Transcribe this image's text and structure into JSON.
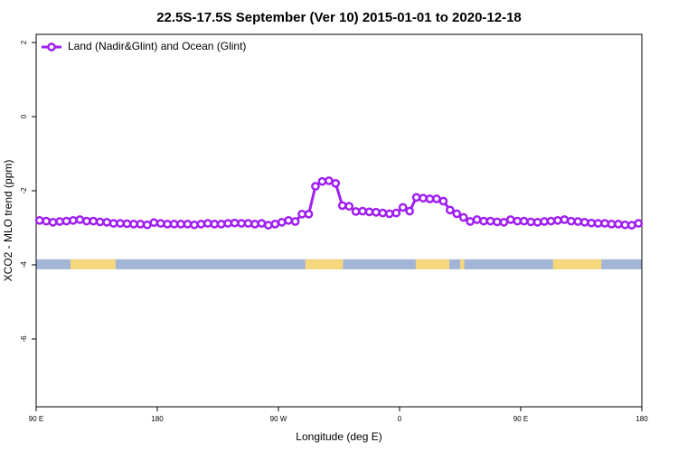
{
  "chart_data": {
    "type": "line",
    "title": "22.5S-17.5S September (Ver 10)   2015-01-01 to 2020-12-18",
    "xlabel": "Longitude (deg E)",
    "ylabel": "XCO2 - MLO trend (ppm)",
    "xlim": [
      90,
      540
    ],
    "ylim": [
      -7.83,
      2.22
    ],
    "xticks": [
      {
        "value": 90,
        "label": "90 E"
      },
      180,
      {
        "value": 270,
        "label": "90 W"
      },
      {
        "value": 360,
        "label": "0"
      },
      {
        "value": 450,
        "label": "90 E"
      },
      {
        "value": 540,
        "label": "180"
      }
    ],
    "yticks": [
      -6,
      -4,
      -2,
      0,
      2
    ],
    "legend": "upper left",
    "x": [
      92.5,
      97.5,
      102.5,
      107.5,
      112.5,
      117.5,
      122.5,
      127.5,
      132.5,
      137.5,
      142.5,
      147.5,
      152.5,
      157.5,
      162.5,
      167.5,
      172.5,
      177.5,
      182.5,
      187.5,
      192.5,
      197.5,
      202.5,
      207.5,
      212.5,
      217.5,
      222.5,
      227.5,
      232.5,
      237.5,
      242.5,
      247.5,
      252.5,
      257.5,
      262.5,
      267.5,
      272.5,
      277.5,
      282.5,
      287.5,
      292.5,
      297.5,
      302.5,
      307.5,
      312.5,
      317.5,
      322.5,
      327.5,
      332.5,
      337.5,
      342.5,
      347.5,
      352.5,
      357.5,
      362.5,
      367.5,
      372.5,
      377.5,
      382.5,
      387.5,
      392.5,
      397.5,
      402.5,
      407.5,
      412.5,
      417.5,
      422.5,
      427.5,
      432.5,
      437.5,
      442.5,
      447.5,
      452.5,
      457.5,
      462.5,
      467.5,
      472.5,
      477.5,
      482.5,
      487.5,
      492.5,
      497.5,
      502.5,
      507.5,
      512.5,
      517.5,
      522.5,
      527.5,
      532.5,
      537.5
    ],
    "series": [
      {
        "name": "Land (Nadir&Glint) and Ocean (Glint)",
        "color": "#a020f0",
        "values": [
          -2.8,
          -2.82,
          -2.85,
          -2.83,
          -2.82,
          -2.8,
          -2.78,
          -2.82,
          -2.82,
          -2.84,
          -2.85,
          -2.88,
          -2.88,
          -2.89,
          -2.9,
          -2.9,
          -2.92,
          -2.86,
          -2.88,
          -2.9,
          -2.9,
          -2.9,
          -2.9,
          -2.92,
          -2.9,
          -2.88,
          -2.9,
          -2.9,
          -2.88,
          -2.87,
          -2.88,
          -2.88,
          -2.9,
          -2.88,
          -2.93,
          -2.9,
          -2.85,
          -2.8,
          -2.83,
          -2.63,
          -2.63,
          -1.88,
          -1.75,
          -1.73,
          -1.8,
          -2.4,
          -2.42,
          -2.56,
          -2.55,
          -2.57,
          -2.58,
          -2.6,
          -2.62,
          -2.6,
          -2.45,
          -2.55,
          -2.18,
          -2.2,
          -2.22,
          -2.22,
          -2.28,
          -2.52,
          -2.62,
          -2.72,
          -2.83,
          -2.78,
          -2.82,
          -2.82,
          -2.84,
          -2.85,
          -2.78,
          -2.82,
          -2.82,
          -2.84,
          -2.85,
          -2.83,
          -2.82,
          -2.8,
          -2.78,
          -2.82,
          -2.83,
          -2.85,
          -2.87,
          -2.88,
          -2.88,
          -2.9,
          -2.9,
          -2.92,
          -2.93,
          -2.88
        ]
      }
    ],
    "surface_band": {
      "ylim": [
        -3.85,
        -4.12
      ],
      "ocean_color": "#a3b5d6",
      "land_color": "#f5d77e",
      "land_ranges": [
        [
          115.5,
          149
        ],
        [
          290,
          318
        ],
        [
          372,
          397
        ],
        [
          405,
          408
        ],
        [
          474,
          510
        ]
      ]
    }
  }
}
